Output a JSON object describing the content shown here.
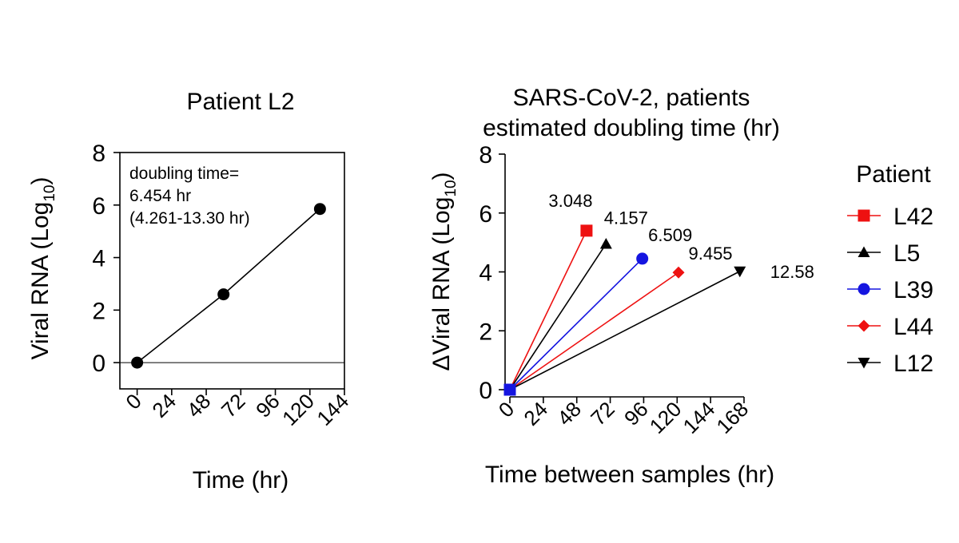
{
  "chart_data": [
    {
      "type": "scatter",
      "title": "Patient L2",
      "xlabel": "Time (hr)",
      "ylabel": "Viral RNA (Log 10)",
      "ylabel_main": "Viral RNA (Log",
      "ylabel_sub": "10",
      "ylabel_close": ")",
      "xlim": [
        -12,
        144
      ],
      "ylim": [
        -1,
        8
      ],
      "x_ticks": [
        0,
        24,
        48,
        72,
        96,
        120,
        144
      ],
      "x_tick_labels": [
        "0",
        "24",
        "48",
        "72",
        "96",
        "120",
        "144"
      ],
      "y_ticks": [
        0,
        2,
        4,
        6,
        8
      ],
      "y_tick_labels": [
        "0",
        "2",
        "4",
        "6",
        "8"
      ],
      "baseline_y": 0,
      "series": [
        {
          "points": [
            [
              0,
              0.0
            ],
            [
              60,
              2.6
            ],
            [
              127,
              5.85
            ]
          ],
          "color": "#000000",
          "marker": "circle"
        }
      ],
      "annotation": [
        "doubling time=",
        "6.454 hr",
        "(4.261-13.30 hr)"
      ]
    },
    {
      "type": "line",
      "title": "SARS-CoV-2, patients",
      "subtitle": "estimated doubling time (hr)",
      "xlabel": "Time between samples (hr)",
      "ylabel": "ΔViral RNA (Log10)",
      "ylabel_main": "ΔViral RNA (Log",
      "ylabel_sub": "10",
      "ylabel_close": ")",
      "xlim": [
        0,
        168
      ],
      "ylim": [
        0,
        8
      ],
      "x_ticks": [
        0,
        24,
        48,
        72,
        96,
        120,
        144,
        168
      ],
      "x_tick_labels": [
        "0",
        "24",
        "48",
        "72",
        "96",
        "120",
        "144",
        "168"
      ],
      "y_ticks": [
        0,
        2,
        4,
        6,
        8
      ],
      "y_tick_labels": [
        "0",
        "2",
        "4",
        "6",
        "8"
      ],
      "legend_title": "Patient",
      "legend_position": "right",
      "series": [
        {
          "name": "L42",
          "color": "#ee1111",
          "marker": "square",
          "points": [
            [
              0,
              0
            ],
            [
              55,
              5.4
            ]
          ],
          "end_label": "3.048"
        },
        {
          "name": "L5",
          "color": "#000000",
          "marker": "triangle-up",
          "points": [
            [
              0,
              0
            ],
            [
              69,
              4.95
            ]
          ],
          "end_label": "4.157"
        },
        {
          "name": "L39",
          "color": "#1515e0",
          "marker": "circle",
          "points": [
            [
              0,
              0
            ],
            [
              95,
              4.45
            ]
          ],
          "end_label": "6.509"
        },
        {
          "name": "L44",
          "color": "#ee1111",
          "marker": "diamond",
          "points": [
            [
              0,
              0
            ],
            [
              121,
              3.98
            ]
          ],
          "end_label": "9.455"
        },
        {
          "name": "L12",
          "color": "#000000",
          "marker": "triangle-down",
          "points": [
            [
              0,
              0
            ],
            [
              165,
              4.02
            ]
          ],
          "end_label": "12.58"
        }
      ]
    }
  ]
}
